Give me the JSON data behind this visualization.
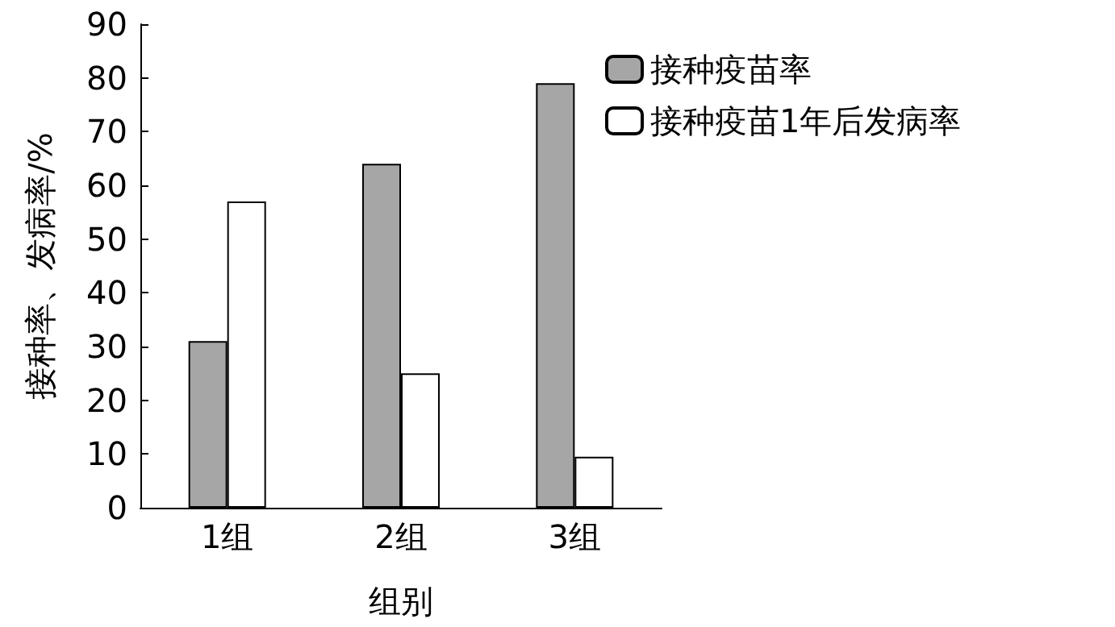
{
  "chart_data": {
    "type": "bar",
    "xlabel": "组别",
    "ylabel": "接种率、发病率/%",
    "categories": [
      "1组",
      "2组",
      "3组"
    ],
    "series": [
      {
        "name": "接种疫苗率",
        "color": "#a6a6a6",
        "values": [
          31,
          64,
          79
        ]
      },
      {
        "name": "接种疫苗1年后发病率",
        "color": "#ffffff",
        "values": [
          57,
          25,
          9.5
        ]
      }
    ],
    "ylim": [
      0,
      90
    ],
    "yticks": [
      0,
      10,
      20,
      30,
      40,
      50,
      60,
      70,
      80,
      90
    ],
    "grid": false,
    "legend": "top right"
  }
}
